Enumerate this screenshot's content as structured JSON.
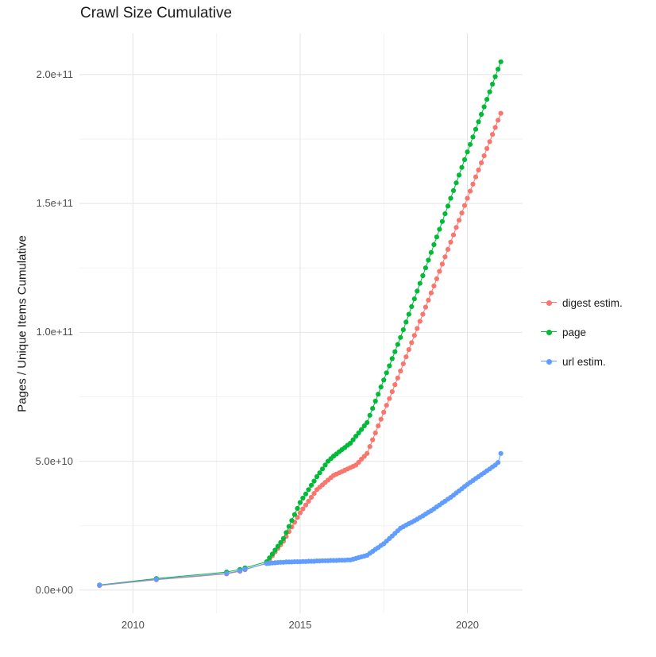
{
  "title": "Crawl Size Cumulative",
  "chart_data": {
    "type": "scatter",
    "title": "Crawl Size Cumulative",
    "xlabel": "",
    "ylabel": "Pages / Unique Items Cumulative",
    "legend_position": "right",
    "grid": true,
    "value_unit_note": "values stored in billions (1e9)",
    "xlim": [
      2008.4,
      2021.65
    ],
    "ylim_e9": [
      -9,
      216
    ],
    "x_ticks": [
      {
        "value": 2010,
        "label": "2010"
      },
      {
        "value": 2015,
        "label": "2015"
      },
      {
        "value": 2020,
        "label": "2020"
      }
    ],
    "x_minor": [
      2012.5,
      2017.5
    ],
    "y_ticks": [
      {
        "value_e9": 0,
        "label": "0.0e+00"
      },
      {
        "value_e9": 50,
        "label": "5.0e+10"
      },
      {
        "value_e9": 100,
        "label": "1.0e+11"
      },
      {
        "value_e9": 150,
        "label": "1.5e+11"
      },
      {
        "value_e9": 200,
        "label": "2.0e+11"
      }
    ],
    "y_minor_e9": [
      25,
      75,
      125,
      175
    ],
    "colors": {
      "grid_major": "#e4e4e4",
      "grid_minor": "#f2f2f2"
    },
    "x": [
      2009.0,
      2010.7,
      2012.8,
      2013.2,
      2013.35,
      2014.0,
      2014.083,
      2014.167,
      2014.25,
      2014.333,
      2014.417,
      2014.5,
      2014.583,
      2014.667,
      2014.75,
      2014.833,
      2014.917,
      2015.0,
      2015.083,
      2015.167,
      2015.25,
      2015.333,
      2015.417,
      2015.5,
      2015.583,
      2015.667,
      2015.75,
      2015.833,
      2015.917,
      2016.0,
      2016.083,
      2016.167,
      2016.25,
      2016.333,
      2016.417,
      2016.5,
      2016.583,
      2016.667,
      2016.75,
      2016.833,
      2016.917,
      2017.0,
      2017.083,
      2017.167,
      2017.25,
      2017.333,
      2017.417,
      2017.5,
      2017.583,
      2017.667,
      2017.75,
      2017.833,
      2017.917,
      2018.0,
      2018.083,
      2018.167,
      2018.25,
      2018.333,
      2018.417,
      2018.5,
      2018.583,
      2018.667,
      2018.75,
      2018.833,
      2018.917,
      2019.0,
      2019.083,
      2019.167,
      2019.25,
      2019.333,
      2019.417,
      2019.5,
      2019.583,
      2019.667,
      2019.75,
      2019.833,
      2019.917,
      2020.0,
      2020.083,
      2020.167,
      2020.25,
      2020.333,
      2020.417,
      2020.5,
      2020.583,
      2020.667,
      2020.75,
      2020.833,
      2020.917,
      2021.0
    ],
    "series": [
      {
        "name": "digest estim.",
        "color": "#F8766D",
        "values_e9": [
          1.8,
          4.0,
          6.3,
          7.3,
          7.9,
          10.5,
          11.9,
          13.3,
          14.8,
          16.2,
          17.6,
          19.0,
          20.8,
          22.7,
          24.5,
          26.3,
          28.2,
          30.0,
          31.5,
          33.0,
          34.5,
          36.0,
          37.5,
          39.0,
          39.9,
          40.8,
          41.8,
          42.7,
          43.6,
          44.5,
          45.0,
          45.5,
          46.0,
          46.5,
          47.0,
          47.5,
          48.0,
          48.5,
          49.6,
          50.8,
          51.9,
          53.0,
          55.7,
          58.3,
          61.0,
          63.7,
          66.3,
          69.0,
          71.7,
          74.3,
          77.0,
          79.7,
          82.3,
          85.0,
          87.8,
          90.5,
          93.3,
          96.0,
          98.8,
          101.5,
          104.3,
          107.0,
          109.8,
          112.5,
          115.3,
          118.0,
          120.8,
          123.7,
          126.5,
          129.3,
          132.2,
          135.0,
          137.8,
          140.7,
          143.5,
          146.3,
          149.2,
          152.0,
          154.8,
          157.5,
          160.3,
          163.0,
          165.8,
          168.5,
          171.3,
          174.0,
          176.8,
          179.5,
          182.3,
          185.0
        ]
      },
      {
        "name": "page",
        "color": "#00BA38",
        "values_e9": [
          2.0,
          4.5,
          7.0,
          8.0,
          8.6,
          11.0,
          12.5,
          14.0,
          15.5,
          17.0,
          18.5,
          20.0,
          22.3,
          24.7,
          27.0,
          29.3,
          31.7,
          34.0,
          35.7,
          37.3,
          39.0,
          40.7,
          42.3,
          44.0,
          45.5,
          47.0,
          48.5,
          50.0,
          51.0,
          52.0,
          52.8,
          53.7,
          54.5,
          55.3,
          56.2,
          57.0,
          58.3,
          59.7,
          61.0,
          62.3,
          63.7,
          65.0,
          67.8,
          70.5,
          73.3,
          76.0,
          78.8,
          81.5,
          84.3,
          87.0,
          89.8,
          92.5,
          95.3,
          98.0,
          101.0,
          104.0,
          107.0,
          110.0,
          113.0,
          116.0,
          119.0,
          122.0,
          125.0,
          128.0,
          131.0,
          134.0,
          137.0,
          140.0,
          143.0,
          146.0,
          149.0,
          152.0,
          155.0,
          158.0,
          161.0,
          164.0,
          167.0,
          170.0,
          172.9,
          175.8,
          178.8,
          181.7,
          184.6,
          187.5,
          190.4,
          193.3,
          196.3,
          199.2,
          202.1,
          205.0
        ]
      },
      {
        "name": "url estim.",
        "color": "#619CFF",
        "values_e9": [
          1.9,
          4.2,
          6.5,
          7.5,
          8.1,
          10.3,
          10.4,
          10.5,
          10.6,
          10.7,
          10.8,
          10.8,
          10.9,
          10.9,
          10.9,
          11.0,
          11.0,
          11.0,
          11.1,
          11.1,
          11.2,
          11.2,
          11.2,
          11.3,
          11.3,
          11.4,
          11.4,
          11.4,
          11.5,
          11.5,
          11.5,
          11.6,
          11.6,
          11.6,
          11.7,
          11.7,
          12.0,
          12.3,
          12.6,
          12.9,
          13.2,
          13.5,
          14.3,
          15.0,
          15.8,
          16.5,
          17.3,
          18.0,
          19.0,
          20.0,
          21.0,
          22.0,
          23.0,
          24.0,
          24.6,
          25.2,
          25.8,
          26.3,
          26.9,
          27.5,
          28.2,
          28.8,
          29.5,
          30.2,
          30.8,
          31.5,
          32.3,
          33.0,
          33.8,
          34.5,
          35.3,
          36.0,
          36.8,
          37.7,
          38.5,
          39.3,
          40.2,
          41.0,
          41.8,
          42.5,
          43.3,
          44.0,
          44.8,
          45.5,
          46.3,
          47.0,
          47.8,
          48.5,
          49.5,
          53.0
        ]
      }
    ]
  }
}
